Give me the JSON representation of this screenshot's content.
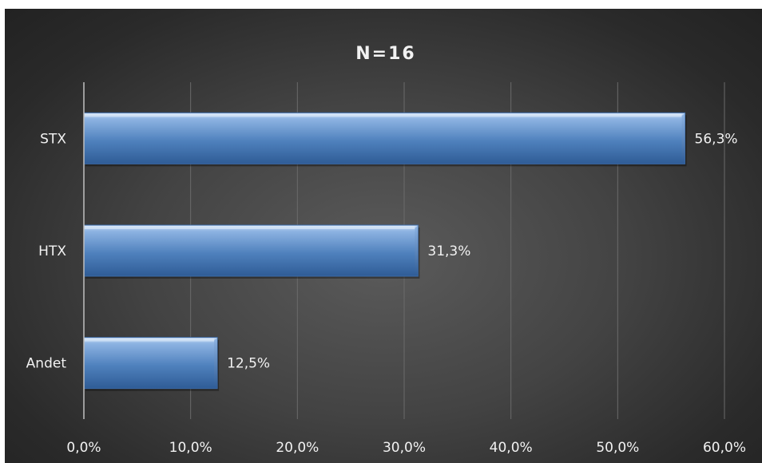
{
  "chart_data": {
    "type": "bar",
    "orientation": "horizontal",
    "title": "N=16",
    "categories": [
      "STX",
      "HTX",
      "Andet"
    ],
    "values": [
      56.3,
      31.3,
      12.5
    ],
    "data_labels": [
      "56,3%",
      "31,3%",
      "12,5%"
    ],
    "xlim": [
      0,
      60
    ],
    "x_ticks": [
      0,
      10,
      20,
      30,
      40,
      50,
      60
    ],
    "x_tick_labels": [
      "0,0%",
      "10,0%",
      "20,0%",
      "30,0%",
      "40,0%",
      "50,0%",
      "60,0%"
    ],
    "grid": true,
    "legend": "none",
    "colors": {
      "bar": "#4f81bd",
      "bar_light": "#8db3e2",
      "bar_dark": "#2f5c96",
      "grid": "#6a6a6a",
      "axis": "#bfbfbf",
      "text": "#f2f2f2"
    }
  }
}
